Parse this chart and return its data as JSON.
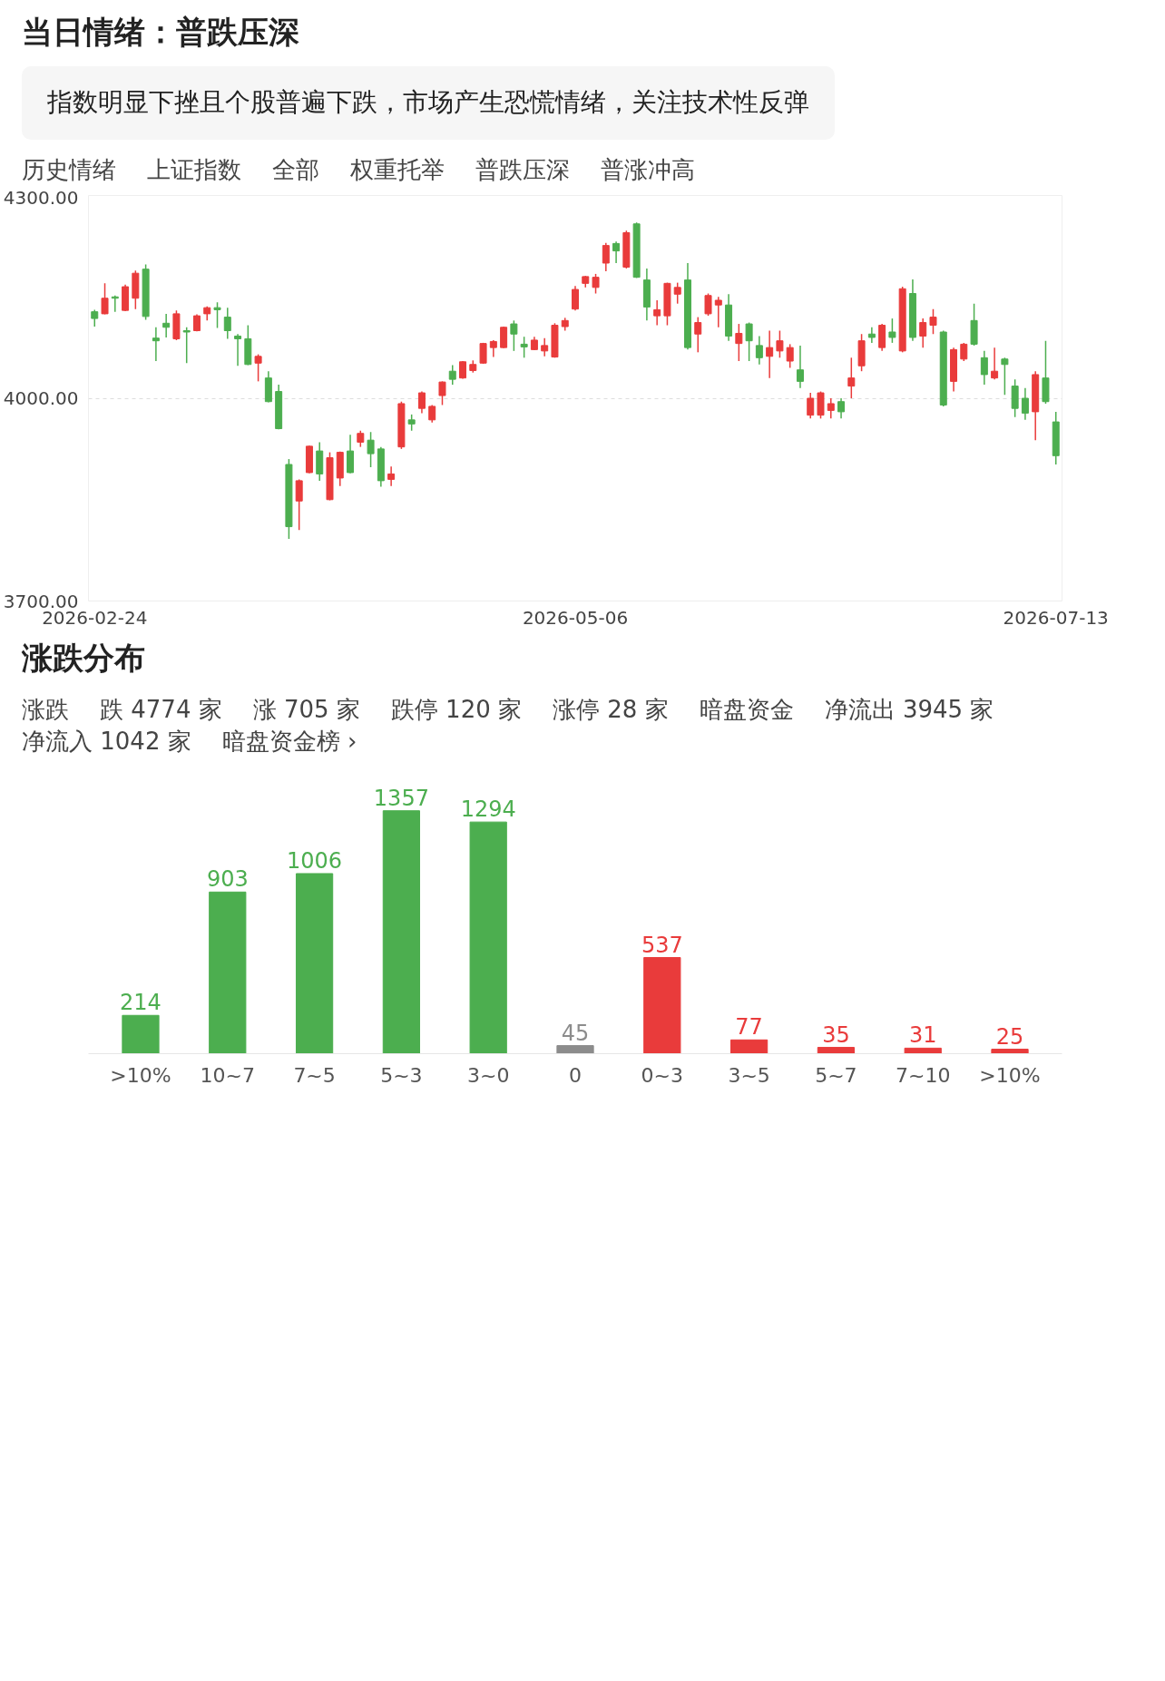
{
  "chart_data": [
    {
      "type": "candlestick",
      "title": "当日情绪：普跌压深",
      "subtitle": "指数明显下挫且个股普遍下跌，市场产生恐慌情绪，关注技术性反弹",
      "categories": [
        "2026-02-24",
        null,
        null,
        null,
        null,
        null,
        null,
        null,
        null,
        null,
        null,
        null,
        null,
        null,
        null,
        null,
        null,
        null,
        null,
        null,
        null,
        null,
        null,
        null,
        null,
        null,
        null,
        null,
        null,
        null,
        null,
        null,
        null,
        null,
        null,
        null,
        null,
        null,
        null,
        null,
        null,
        null,
        null,
        null,
        null,
        null,
        null,
        "2026-05-06",
        null,
        null,
        null,
        null,
        null,
        null,
        null,
        null,
        null,
        null,
        null,
        null,
        null,
        null,
        null,
        null,
        null,
        null,
        null,
        null,
        null,
        null,
        null,
        null,
        null,
        null,
        null,
        null,
        null,
        null,
        null,
        null,
        null,
        null,
        null,
        null,
        null,
        null,
        null,
        null,
        null,
        null,
        null,
        null,
        null,
        null,
        "2026-07-13"
      ],
      "ohlc": [
        [
          4128,
          4131,
          4106,
          4118
        ],
        [
          4125,
          4170,
          4124,
          4148
        ],
        [
          4150,
          4152,
          4128,
          4148
        ],
        [
          4130,
          4168,
          4129,
          4165
        ],
        [
          4148,
          4189,
          4132,
          4185
        ],
        [
          4191,
          4198,
          4116,
          4121
        ],
        [
          4089,
          4105,
          4055,
          4085
        ],
        [
          4111,
          4125,
          4090,
          4105
        ],
        [
          4088,
          4130,
          4086,
          4125
        ],
        [
          4100,
          4105,
          4052,
          4098
        ],
        [
          4100,
          4124,
          4099,
          4122
        ],
        [
          4125,
          4136,
          4115,
          4134
        ],
        [
          4134,
          4142,
          4104,
          4131
        ],
        [
          4120,
          4134,
          4088,
          4100
        ],
        [
          4092,
          4095,
          4048,
          4088
        ],
        [
          4088,
          4108,
          4049,
          4050
        ],
        [
          4052,
          4065,
          4025,
          4062
        ],
        [
          4030,
          4040,
          3994,
          3995
        ],
        [
          4010,
          4020,
          3954,
          3955
        ],
        [
          3902,
          3910,
          3792,
          3810
        ],
        [
          3848,
          3880,
          3805,
          3878
        ],
        [
          3890,
          3930,
          3889,
          3929
        ],
        [
          3922,
          3935,
          3878,
          3888
        ],
        [
          3850,
          3920,
          3849,
          3912
        ],
        [
          3882,
          3921,
          3870,
          3920
        ],
        [
          3922,
          3946,
          3889,
          3890
        ],
        [
          3935,
          3952,
          3928,
          3948
        ],
        [
          3938,
          3950,
          3898,
          3918
        ],
        [
          3925,
          3928,
          3869,
          3878
        ],
        [
          3880,
          3899,
          3870,
          3888
        ],
        [
          3928,
          3995,
          3925,
          3992
        ],
        [
          3968,
          3976,
          3952,
          3962
        ],
        [
          3985,
          4010,
          3978,
          4008
        ],
        [
          3968,
          3990,
          3964,
          3988
        ],
        [
          4004,
          4025,
          3990,
          4024
        ],
        [
          4040,
          4049,
          4020,
          4028
        ],
        [
          4030,
          4055,
          4029,
          4054
        ],
        [
          4041,
          4056,
          4038,
          4050
        ],
        [
          4052,
          4082,
          4051,
          4081
        ],
        [
          4075,
          4086,
          4061,
          4084
        ],
        [
          4075,
          4106,
          4074,
          4105
        ],
        [
          4110,
          4115,
          4070,
          4095
        ],
        [
          4080,
          4091,
          4060,
          4076
        ],
        [
          4072,
          4091,
          4071,
          4086
        ],
        [
          4070,
          4089,
          4062,
          4078
        ],
        [
          4061,
          4111,
          4060,
          4108
        ],
        [
          4106,
          4119,
          4100,
          4115
        ],
        [
          4132,
          4166,
          4130,
          4161
        ],
        [
          4170,
          4181,
          4164,
          4180
        ],
        [
          4164,
          4184,
          4155,
          4179
        ],
        [
          4200,
          4230,
          4188,
          4226
        ],
        [
          4229,
          4232,
          4200,
          4218
        ],
        [
          4194,
          4248,
          4192,
          4245
        ],
        [
          4258,
          4260,
          4178,
          4179
        ],
        [
          4175,
          4192,
          4115,
          4135
        ],
        [
          4122,
          4145,
          4108,
          4131
        ],
        [
          4122,
          4171,
          4108,
          4170
        ],
        [
          4154,
          4171,
          4140,
          4164
        ],
        [
          4175,
          4200,
          4072,
          4075
        ],
        [
          4095,
          4120,
          4068,
          4112
        ],
        [
          4125,
          4155,
          4122,
          4152
        ],
        [
          4138,
          4150,
          4105,
          4145
        ],
        [
          4138,
          4154,
          4085,
          4092
        ],
        [
          4081,
          4110,
          4055,
          4096
        ],
        [
          4110,
          4112,
          4055,
          4085
        ],
        [
          4078,
          4092,
          4050,
          4060
        ],
        [
          4062,
          4100,
          4030,
          4075
        ],
        [
          4070,
          4100,
          4060,
          4085
        ],
        [
          4055,
          4080,
          4045,
          4075
        ],
        [
          4042,
          4078,
          4015,
          4025
        ],
        [
          3975,
          4008,
          3970,
          4000
        ],
        [
          3975,
          4010,
          3970,
          4008
        ],
        [
          3982,
          4000,
          3970,
          3992
        ],
        [
          3995,
          4000,
          3970,
          3980
        ],
        [
          4018,
          4060,
          4000,
          4030
        ],
        [
          4048,
          4095,
          4040,
          4085
        ],
        [
          4095,
          4105,
          4082,
          4090
        ],
        [
          4075,
          4110,
          4070,
          4108
        ],
        [
          4098,
          4118,
          4082,
          4090
        ],
        [
          4070,
          4165,
          4068,
          4162
        ],
        [
          4155,
          4176,
          4085,
          4090
        ],
        [
          4092,
          4118,
          4075,
          4112
        ],
        [
          4108,
          4132,
          4095,
          4120
        ],
        [
          4098,
          4100,
          3988,
          3990
        ],
        [
          4025,
          4075,
          4010,
          4072
        ],
        [
          4058,
          4082,
          4055,
          4080
        ],
        [
          4115,
          4140,
          4078,
          4080
        ],
        [
          4060,
          4070,
          4020,
          4035
        ],
        [
          4030,
          4075,
          4028,
          4040
        ],
        [
          4058,
          4060,
          4005,
          4050
        ],
        [
          4018,
          4028,
          3972,
          3985
        ],
        [
          4000,
          4015,
          3968,
          3978
        ],
        [
          3980,
          4040,
          3938,
          4035
        ],
        [
          4030,
          4085,
          3992,
          3995
        ],
        [
          3965,
          3980,
          3902,
          3915
        ]
      ],
      "colors": [
        "#4cae4f",
        "#e93b3b",
        "#4cae4f",
        "#e93b3b",
        "#e93b3b",
        "#4cae4f",
        "#4cae4f",
        "#4cae4f",
        "#e93b3b",
        "#4cae4f",
        "#e93b3b",
        "#e93b3b",
        "#4cae4f",
        "#4cae4f",
        "#4cae4f",
        "#4cae4f",
        "#e93b3b",
        "#4cae4f",
        "#4cae4f",
        "#4cae4f",
        "#e93b3b",
        "#e93b3b",
        "#4cae4f",
        "#e93b3b",
        "#e93b3b",
        "#4cae4f",
        "#e93b3b",
        "#4cae4f",
        "#4cae4f",
        "#e93b3b",
        "#e93b3b",
        "#4cae4f",
        "#e93b3b",
        "#e93b3b",
        "#e93b3b",
        "#4cae4f",
        "#e93b3b",
        "#e93b3b",
        "#e93b3b",
        "#e93b3b",
        "#e93b3b",
        "#4cae4f",
        "#4cae4f",
        "#e93b3b",
        "#e93b3b",
        "#e93b3b",
        "#e93b3b",
        "#e93b3b",
        "#e93b3b",
        "#e93b3b",
        "#e93b3b",
        "#4cae4f",
        "#e93b3b",
        "#4cae4f",
        "#4cae4f",
        "#e93b3b",
        "#e93b3b",
        "#e93b3b",
        "#4cae4f",
        "#e93b3b",
        "#e93b3b",
        "#e93b3b",
        "#4cae4f",
        "#e93b3b",
        "#4cae4f",
        "#4cae4f",
        "#e93b3b",
        "#e93b3b",
        "#e93b3b",
        "#4cae4f",
        "#e93b3b",
        "#e93b3b",
        "#e93b3b",
        "#4cae4f",
        "#e93b3b",
        "#e93b3b",
        "#4cae4f",
        "#e93b3b",
        "#4cae4f",
        "#e93b3b",
        "#4cae4f",
        "#e93b3b",
        "#e93b3b",
        "#4cae4f",
        "#e93b3b",
        "#e93b3b",
        "#4cae4f",
        "#4cae4f",
        "#e93b3b",
        "#4cae4f",
        "#4cae4f",
        "#4cae4f",
        "#e93b3b",
        "#4cae4f",
        "#4cae4f"
      ],
      "ylim": [
        3700,
        4300
      ],
      "yticks": [
        {
          "value": 3700,
          "label": "3700.00"
        },
        {
          "value": 4000,
          "label": "4000.00"
        },
        {
          "value": 4300,
          "label": "4300.00"
        }
      ],
      "grid": "y",
      "annotations": [
        "历史情绪",
        "上证指数",
        "全部",
        "权重托举",
        "普跌压深",
        "普涨冲高"
      ]
    },
    {
      "type": "bar",
      "title": "涨跌分布",
      "categories": [
        ">10%",
        "10~7",
        "7~5",
        "5~3",
        "3~0",
        "0",
        "0~3",
        "3~5",
        "5~7",
        "7~10",
        ">10%"
      ],
      "values": [
        214,
        903,
        1006,
        1357,
        1294,
        45,
        537,
        77,
        35,
        31,
        25
      ],
      "colors": [
        "#4cae4f",
        "#4cae4f",
        "#4cae4f",
        "#4cae4f",
        "#4cae4f",
        "#8c8c8c",
        "#e93b3b",
        "#e93b3b",
        "#e93b3b",
        "#e93b3b",
        "#e93b3b"
      ],
      "data_labels": true,
      "tick_labels": "x",
      "annotations": [
        "涨跌",
        "跌 4774 家",
        "涨 705 家",
        "跌停 120 家",
        "涨停 28 家",
        "暗盘资金",
        "净流出 3945 家",
        "净流入 1042 家",
        "暗盘资金榜 ›"
      ]
    }
  ]
}
